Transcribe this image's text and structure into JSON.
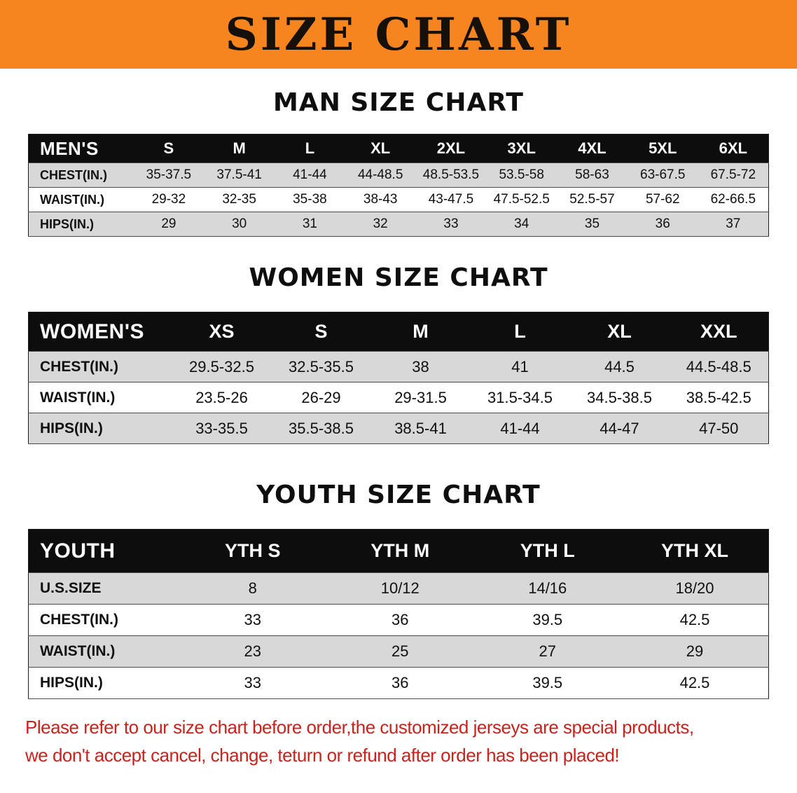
{
  "banner": {
    "title": "SIZE CHART"
  },
  "colors": {
    "banner_bg": "#f6851f",
    "header_bar": "#0d0d0d",
    "row_stripe": "#d8d8d8",
    "footer_text": "#c9231c"
  },
  "men": {
    "heading": "MAN SIZE CHART",
    "corner": "MEN'S",
    "columns": [
      "S",
      "M",
      "L",
      "XL",
      "2XL",
      "3XL",
      "4XL",
      "5XL",
      "6XL"
    ],
    "rows": [
      {
        "label": "CHEST(IN.)",
        "values": [
          "35-37.5",
          "37.5-41",
          "41-44",
          "44-48.5",
          "48.5-53.5",
          "53.5-58",
          "58-63",
          "63-67.5",
          "67.5-72"
        ]
      },
      {
        "label": "WAIST(IN.)",
        "values": [
          "29-32",
          "32-35",
          "35-38",
          "38-43",
          "43-47.5",
          "47.5-52.5",
          "52.5-57",
          "57-62",
          "62-66.5"
        ]
      },
      {
        "label": "HIPS(IN.)",
        "values": [
          "29",
          "30",
          "31",
          "32",
          "33",
          "34",
          "35",
          "36",
          "37"
        ]
      }
    ]
  },
  "women": {
    "heading": "WOMEN SIZE CHART",
    "corner": "WOMEN'S",
    "columns": [
      "XS",
      "S",
      "M",
      "L",
      "XL",
      "XXL"
    ],
    "rows": [
      {
        "label": "CHEST(IN.)",
        "values": [
          "29.5-32.5",
          "32.5-35.5",
          "38",
          "41",
          "44.5",
          "44.5-48.5"
        ]
      },
      {
        "label": "WAIST(IN.)",
        "values": [
          "23.5-26",
          "26-29",
          "29-31.5",
          "31.5-34.5",
          "34.5-38.5",
          "38.5-42.5"
        ]
      },
      {
        "label": "HIPS(IN.)",
        "values": [
          "33-35.5",
          "35.5-38.5",
          "38.5-41",
          "41-44",
          "44-47",
          "47-50"
        ]
      }
    ]
  },
  "youth": {
    "heading": "YOUTH SIZE CHART",
    "corner": "YOUTH",
    "columns": [
      "YTH S",
      "YTH M",
      "YTH L",
      "YTH XL"
    ],
    "rows": [
      {
        "label": "U.S.SIZE",
        "values": [
          "8",
          "10/12",
          "14/16",
          "18/20"
        ]
      },
      {
        "label": "CHEST(IN.)",
        "values": [
          "33",
          "36",
          "39.5",
          "42.5"
        ]
      },
      {
        "label": "WAIST(IN.)",
        "values": [
          "23",
          "25",
          "27",
          "29"
        ]
      },
      {
        "label": "HIPS(IN.)",
        "values": [
          "33",
          "36",
          "39.5",
          "42.5"
        ]
      }
    ]
  },
  "footer": {
    "line1": "Please refer to our size chart before order,the customized jerseys are special products,",
    "line2": "we don't accept cancel, change, teturn or refund after order has been placed!"
  }
}
